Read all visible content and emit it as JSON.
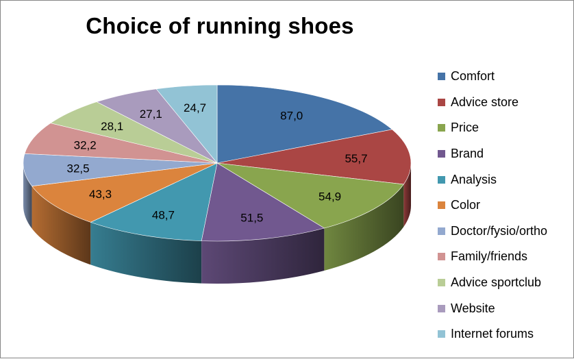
{
  "chart_data": {
    "type": "pie",
    "title": "Choice of running shoes",
    "categories": [
      "Comfort",
      "Advice store",
      "Price",
      "Brand",
      "Analysis",
      "Color",
      "Doctor/fysio/ortho",
      "Family/friends",
      "Advice sportclub",
      "Website",
      "Internet forums"
    ],
    "values": [
      87.0,
      55.7,
      54.9,
      51.5,
      48.7,
      43.3,
      32.5,
      32.2,
      28.1,
      27.1,
      24.7
    ],
    "value_labels": [
      "87,0",
      "55,7",
      "54,9",
      "51,5",
      "48,7",
      "43,3",
      "32,5",
      "32,2",
      "28,1",
      "27,1",
      "24,7"
    ],
    "colors": [
      "#4573a7",
      "#aa4644",
      "#89a54e",
      "#71588f",
      "#4298af",
      "#db843d",
      "#93a9cf",
      "#d19392",
      "#b9cd96",
      "#a99bbd",
      "#92c3d5"
    ],
    "legend_position": "right",
    "style": "3d"
  }
}
